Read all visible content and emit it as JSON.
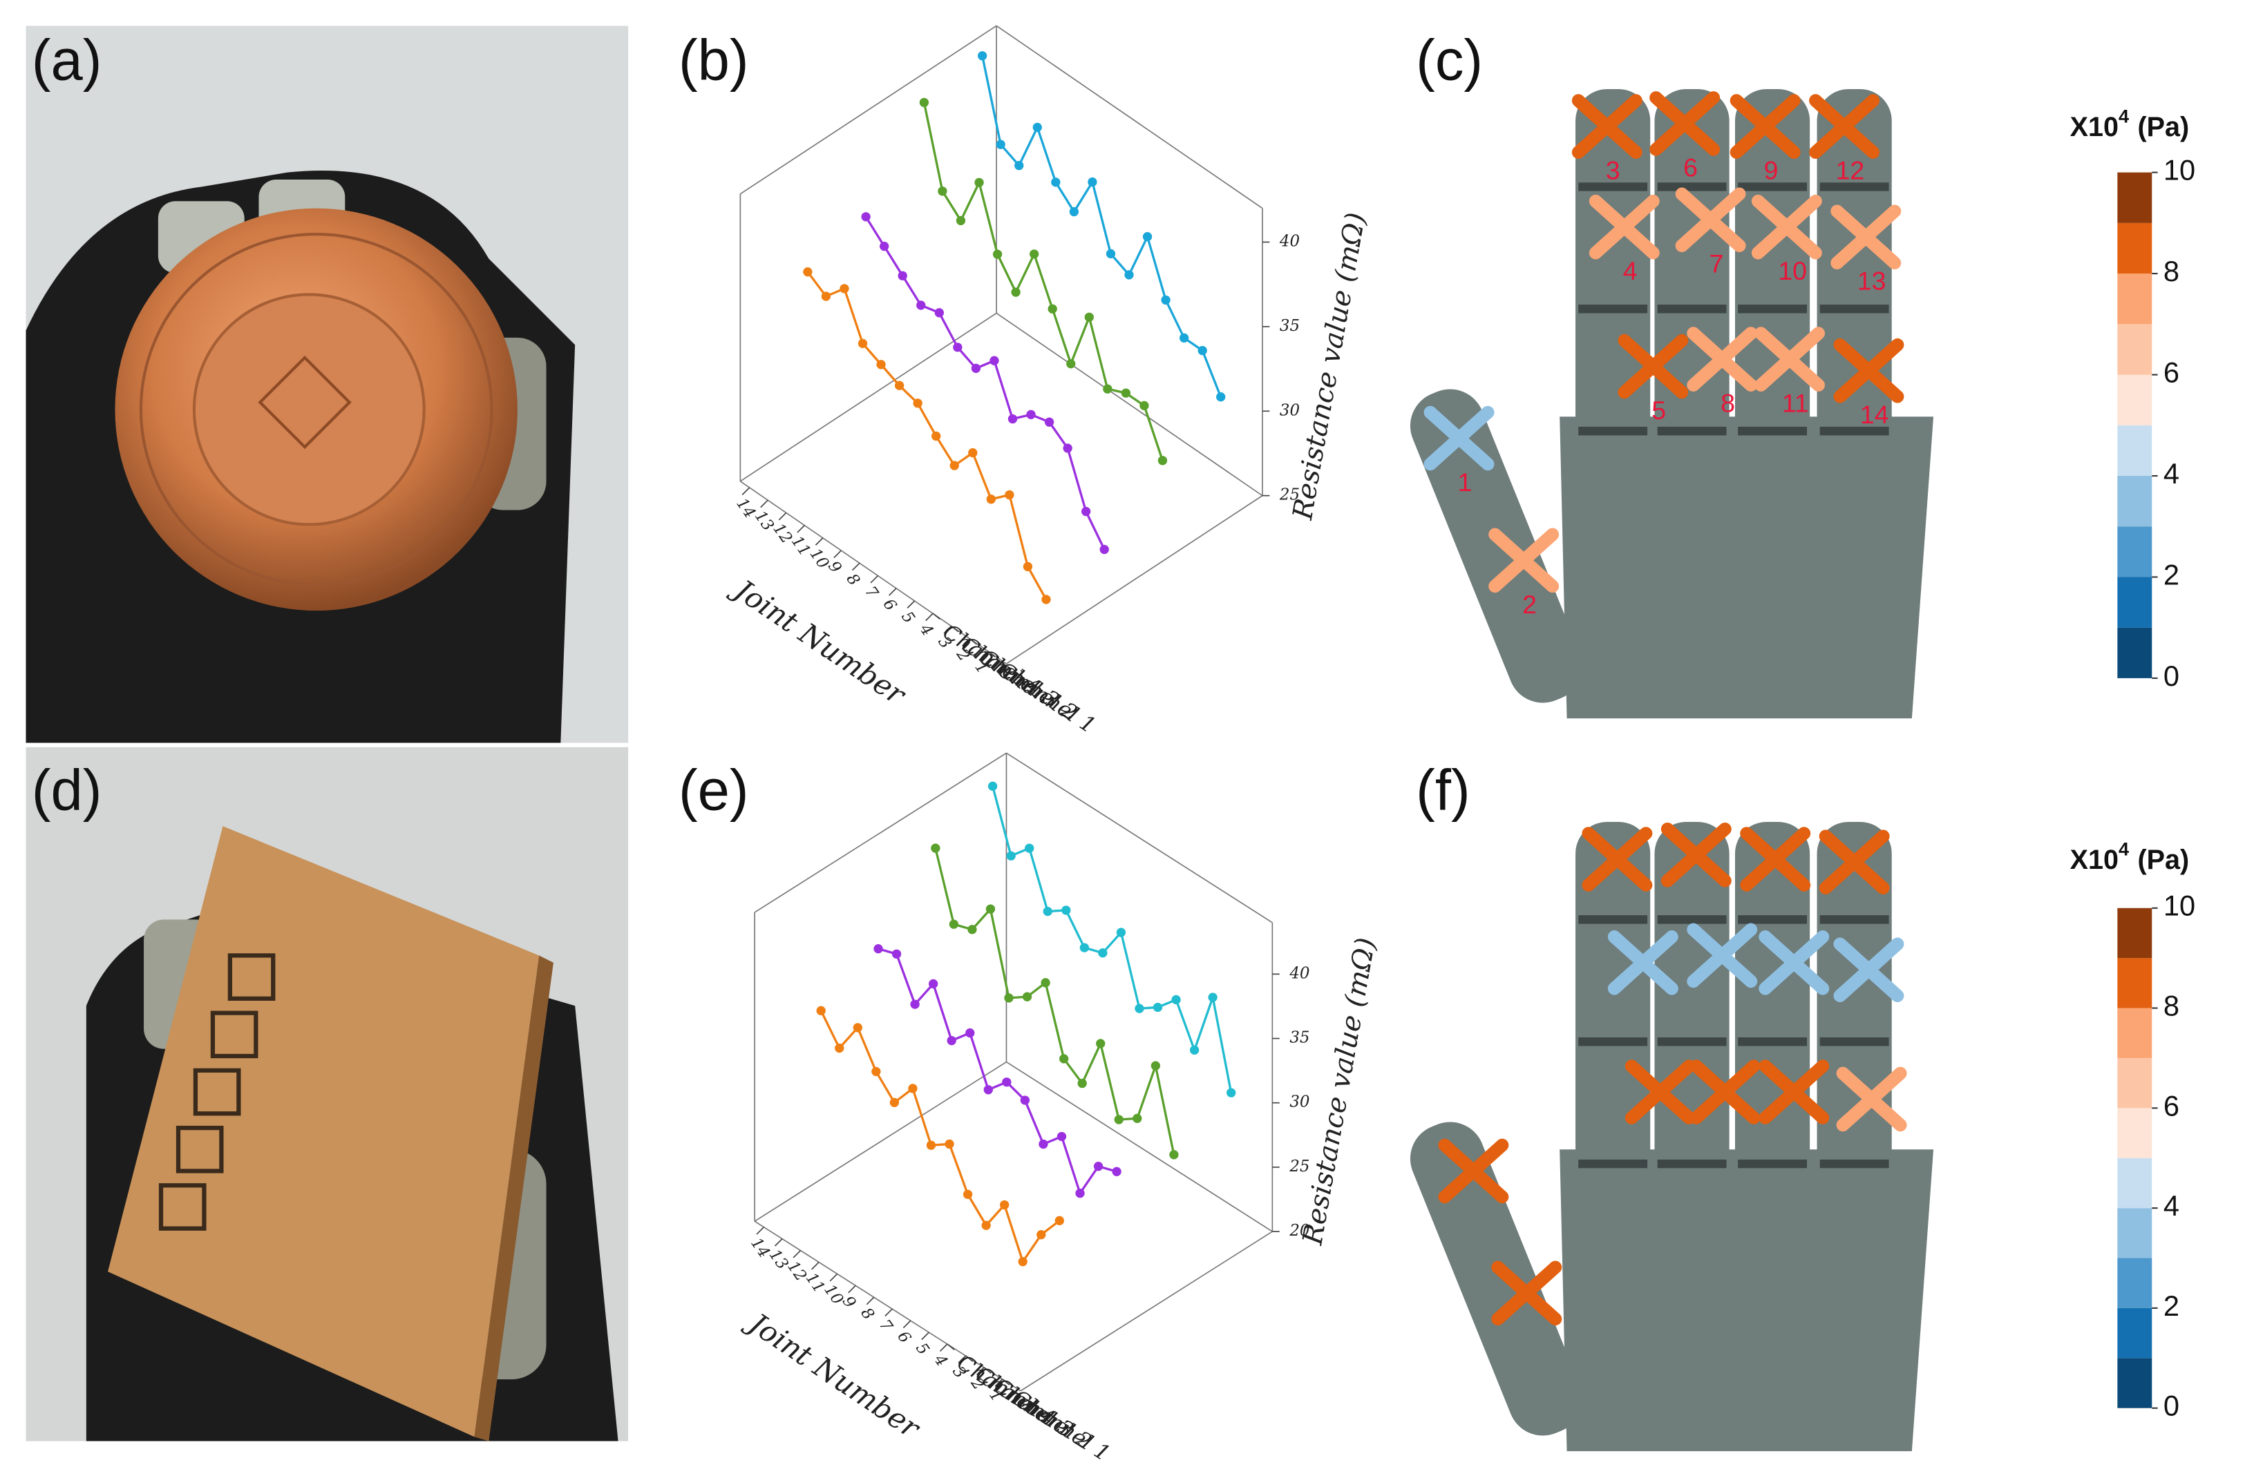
{
  "photos": [
    {
      "label": "(a)"
    },
    {
      "label": "(d)"
    }
  ],
  "chart_data": [
    {
      "type": "line3d",
      "label": "(b)",
      "xlabel": "Joint Number",
      "ylabel": "Resistance value (mΩ)",
      "x": [
        1,
        2,
        3,
        4,
        5,
        6,
        7,
        8,
        9,
        10,
        11,
        12,
        13,
        14
      ],
      "xticks": [
        1,
        2,
        3,
        4,
        5,
        6,
        7,
        8,
        9,
        10,
        11,
        12,
        13,
        14
      ],
      "zcategories": [
        "Channel 1",
        "Channel 2",
        "Channel 3",
        "Channel 4"
      ],
      "ylim": [
        25,
        42
      ],
      "yticks": [
        25,
        30,
        35,
        40
      ],
      "series": [
        {
          "color": "#f07f13",
          "values": [
            25.8,
            27,
            30.5,
            29.5,
            31.5,
            30,
            31,
            32.2,
            32.5,
            33,
            33.5,
            36,
            34.8,
            35.5
          ]
        },
        {
          "color": "#9b30e0",
          "values": [
            26.5,
            28,
            31,
            31.8,
            31.5,
            30.5,
            33.2,
            32,
            32.5,
            33.8,
            33.5,
            34.5,
            35.5,
            36.5
          ]
        },
        {
          "color": "#5aa02c",
          "values": [
            29.5,
            32,
            32,
            31.5,
            35,
            31.5,
            34,
            36.5,
            33.5,
            35,
            38.5,
            35.5,
            36.5,
            41
          ]
        },
        {
          "color": "#1ba6d9",
          "values": [
            31,
            33,
            33,
            34.5,
            37.5,
            34.5,
            35,
            38.5,
            36,
            37,
            39.5,
            36.5,
            37,
            41.5
          ]
        }
      ]
    },
    {
      "type": "line3d",
      "label": "(e)",
      "xlabel": "Joint Number",
      "ylabel": "Resistance value (mΩ)",
      "x": [
        1,
        2,
        3,
        4,
        5,
        6,
        7,
        8,
        9,
        10,
        11,
        12,
        13,
        14
      ],
      "xticks": [
        1,
        2,
        3,
        4,
        5,
        6,
        7,
        8,
        9,
        10,
        11,
        12,
        13,
        14
      ],
      "zcategories": [
        "Channel 1",
        "Channel 2",
        "Channel 3",
        "Channel 4"
      ],
      "ylim": [
        20,
        44
      ],
      "yticks": [
        20,
        25,
        30,
        35,
        40
      ],
      "series": [
        {
          "color": "#f07f13",
          "values": [
            29.5,
            27.5,
            24.5,
            28,
            25.5,
            27,
            30,
            29,
            32.5,
            30.5,
            32,
            34.5,
            32,
            34
          ]
        },
        {
          "color": "#9b30e0",
          "values": [
            30.5,
            30,
            27,
            30.5,
            29,
            31.5,
            32,
            30.5,
            34,
            32.5,
            36,
            33.5,
            36.5,
            36
          ]
        },
        {
          "color": "#5aa02c",
          "values": [
            29,
            35,
            30,
            29,
            34,
            30,
            31,
            36,
            34,
            33,
            39,
            36.5,
            36,
            41
          ]
        },
        {
          "color": "#22bcd0",
          "values": [
            31,
            37.5,
            32.5,
            35.5,
            34,
            33,
            38,
            35.5,
            35,
            37,
            36,
            40,
            38.5,
            43
          ]
        }
      ]
    },
    {
      "type": "hand",
      "label": "(c)",
      "labels": [
        "1",
        "2",
        "3",
        "4",
        "5",
        "6",
        "7",
        "8",
        "9",
        "10",
        "11",
        "12",
        "13",
        "14"
      ],
      "values": [
        3.5,
        7.5,
        8.5,
        7.5,
        8.5,
        8.5,
        7.5,
        7.5,
        8.5,
        7.5,
        7.5,
        8.5,
        7.5,
        8.5
      ],
      "colorbar": {
        "title": "X10",
        "exponent": "4",
        "unit": "(Pa)",
        "lim": [
          0,
          10
        ],
        "ticks": [
          0,
          2,
          4,
          6,
          8,
          10
        ],
        "colors": [
          "#0b4a78",
          "#1470b0",
          "#4d98cc",
          "#8fc0e2",
          "#c7def0",
          "#fde4d6",
          "#fcc6a6",
          "#fba574",
          "#e2600f",
          "#8e3a0b"
        ]
      }
    },
    {
      "type": "hand",
      "label": "(f)",
      "values": [
        8.5,
        8.5,
        8.5,
        3.5,
        8.5,
        8.5,
        3.5,
        8.5,
        8.5,
        3.5,
        8.5,
        8.5,
        3.5,
        7.5
      ],
      "colorbar": {
        "title": "X10",
        "exponent": "4",
        "unit": "(Pa)",
        "lim": [
          0,
          10
        ],
        "ticks": [
          0,
          2,
          4,
          6,
          8,
          10
        ],
        "colors": [
          "#0b4a78",
          "#1470b0",
          "#4d98cc",
          "#8fc0e2",
          "#c7def0",
          "#fde4d6",
          "#fcc6a6",
          "#fba574",
          "#e2600f",
          "#8e3a0b"
        ]
      }
    }
  ]
}
